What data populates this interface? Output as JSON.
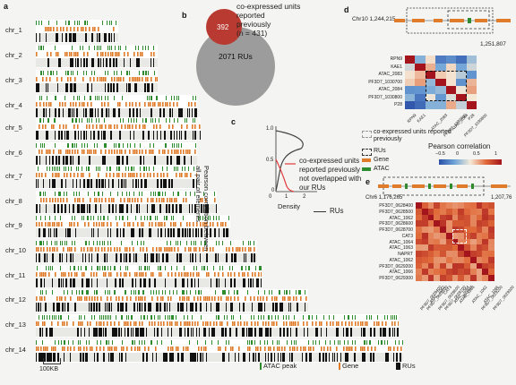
{
  "panels": {
    "a": "a",
    "b": "b",
    "c": "c",
    "d": "d",
    "e": "e"
  },
  "chromosomes": [
    "chr_1",
    "chr_2",
    "chr_3",
    "chr_4",
    "chr_5",
    "chr_6",
    "chr_7",
    "chr_8",
    "chr_9",
    "chr_10",
    "chr_11",
    "chr_12",
    "chr_13",
    "chr_14"
  ],
  "scale_bar": "100KB",
  "legend_a": {
    "atac": "ATAC peak",
    "gene": "Gene",
    "rus": "RUs"
  },
  "colors": {
    "atac": "#2e8b2e",
    "gene": "#e07b2a",
    "ru": "#111111",
    "ru_light": "#e8e8e4",
    "red": "#d22b2b"
  },
  "venn": {
    "inner_value": "392",
    "outer_value": "2071 RUs",
    "title_lines": [
      "co-expressed units",
      "reported",
      "previously",
      "(n = 431)"
    ]
  },
  "panel_c": {
    "ylabel_lines": [
      "Pearson correlation between",
      "all pair of elements"
    ],
    "xlabel": "Density",
    "yticks": [
      "1.0",
      "0.5",
      "0"
    ],
    "xticks": [
      "0",
      "1",
      "2"
    ],
    "legend_red": [
      "co-expressed units",
      "reported previously",
      "not overlapped with",
      "our RUs"
    ],
    "legend_black": "RUs"
  },
  "panel_d": {
    "coord_left": "Chr10  1,244,215",
    "coord_right": "1,251,807",
    "rows": [
      "RPN9",
      "KAE1",
      "ATAC_2083",
      "PF3D7_1030700",
      "ATAC_2084",
      "PF3D7_1030800",
      "P28"
    ]
  },
  "legend_right": {
    "prev": "co-expressed units reported previously",
    "rus": "RUs",
    "gene": "Gene",
    "atac": "ATAC",
    "pearson": "Pearson correlation",
    "ticks": [
      "−0.5",
      "0",
      "0.5",
      "1"
    ]
  },
  "panel_e": {
    "coord_left": "Chr6  1,176,265",
    "coord_right": "1,207,76",
    "rows": [
      "PF3D7_0628400",
      "PF3D7_0628500",
      "ATAC_1062",
      "PF3D7_0628600",
      "PF3D7_0628700",
      "CAT3",
      "ATAC_1064",
      "ATAC_1063",
      "NAPRT",
      "ATAC_1062",
      "PF3D7_0629200",
      "ATAC_1066",
      "PF3D7_0629300"
    ]
  }
}
